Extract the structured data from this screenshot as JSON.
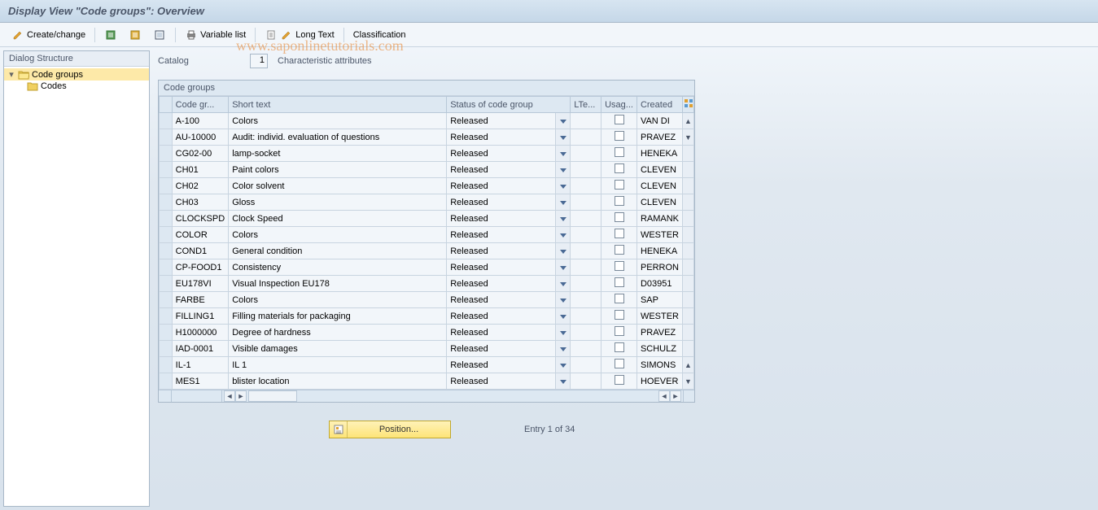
{
  "title": "Display View \"Code groups\": Overview",
  "toolbar": {
    "create_change": "Create/change",
    "variable_list": "Variable list",
    "long_text": "Long Text",
    "classification": "Classification"
  },
  "tree": {
    "header": "Dialog Structure",
    "root": {
      "label": "Code groups"
    },
    "child": {
      "label": "Codes"
    }
  },
  "catalog": {
    "label": "Catalog",
    "value": "1",
    "description": "Characteristic attributes"
  },
  "group_header": "Code groups",
  "columns": {
    "code_group": "Code gr...",
    "short_text": "Short text",
    "status": "Status of code group",
    "lte": "LTe...",
    "usag": "Usag...",
    "created": "Created"
  },
  "status_released": "Released",
  "rows": [
    {
      "code": "A-100",
      "text": "Colors",
      "created": "VAN DI"
    },
    {
      "code": "AU-10000",
      "text": "Audit: individ. evaluation of questions",
      "created": "PRAVEZ"
    },
    {
      "code": "CG02-00",
      "text": "lamp-socket",
      "created": "HENEKA"
    },
    {
      "code": "CH01",
      "text": "Paint colors",
      "created": "CLEVEN"
    },
    {
      "code": "CH02",
      "text": "Color solvent",
      "created": "CLEVEN"
    },
    {
      "code": "CH03",
      "text": "Gloss",
      "created": "CLEVEN"
    },
    {
      "code": "CLOCKSPD",
      "text": "Clock Speed",
      "created": "RAMANK"
    },
    {
      "code": "COLOR",
      "text": "Colors",
      "created": "WESTER"
    },
    {
      "code": "COND1",
      "text": "General condition",
      "created": "HENEKA"
    },
    {
      "code": "CP-FOOD1",
      "text": "Consistency",
      "created": "PERRON"
    },
    {
      "code": "EU178VI",
      "text": "Visual Inspection EU178",
      "created": "D03951"
    },
    {
      "code": "FARBE",
      "text": "Colors",
      "created": "SAP"
    },
    {
      "code": "FILLING1",
      "text": "Filling materials for packaging",
      "created": "WESTER"
    },
    {
      "code": "H1000000",
      "text": "Degree of hardness",
      "created": "PRAVEZ"
    },
    {
      "code": "IAD-0001",
      "text": "Visible damages",
      "created": "SCHULZ"
    },
    {
      "code": "IL-1",
      "text": "IL 1",
      "created": "SIMONS"
    },
    {
      "code": "MES1",
      "text": "blister location",
      "created": "HOEVER"
    }
  ],
  "footer": {
    "position": "Position...",
    "entry": "Entry 1 of 34"
  },
  "watermark": "www.saponlinetutorials.com",
  "colors": {
    "title_bg": "#d7e5f1",
    "selected_bg": "#fde9a8",
    "position_bg": "#fde477",
    "header_bg": "#dde8f2",
    "cell_bg": "#f2f6fa",
    "border": "#a8b8c8"
  }
}
